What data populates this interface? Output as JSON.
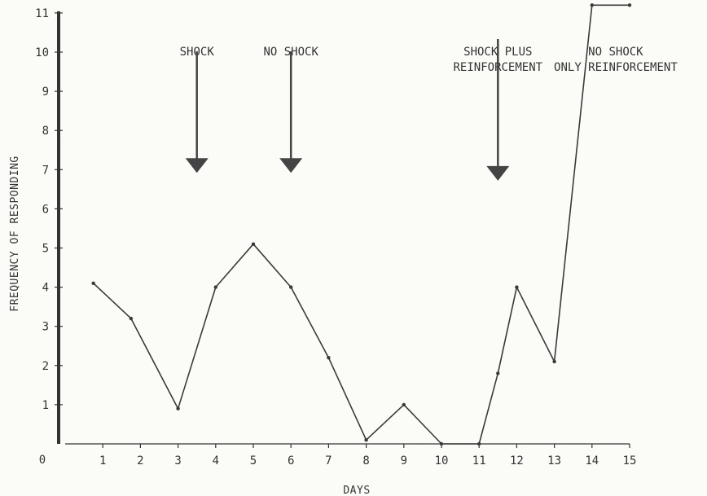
{
  "chart_data": {
    "type": "line",
    "title": "",
    "xlabel": "DAYS",
    "ylabel": "FREQUENCY OF RESPONDING",
    "xlim": [
      0,
      15
    ],
    "ylim": [
      0,
      11
    ],
    "origin_label": "0",
    "x_ticks": [
      "1",
      "2",
      "3",
      "4",
      "5",
      "6",
      "7",
      "8",
      "9",
      "10",
      "11",
      "12",
      "13",
      "14",
      "15"
    ],
    "y_ticks": [
      "1",
      "2",
      "3",
      "4",
      "5",
      "6",
      "7",
      "8",
      "9",
      "10",
      "11"
    ],
    "grid": false,
    "series": [
      {
        "color": "#3a3a3a",
        "points": [
          {
            "x": 0.75,
            "y": 4.1
          },
          {
            "x": 1.75,
            "y": 3.2
          },
          {
            "x": 3.0,
            "y": 0.9
          },
          {
            "x": 4.0,
            "y": 4.0
          },
          {
            "x": 5.0,
            "y": 5.1
          },
          {
            "x": 6.0,
            "y": 4.0
          },
          {
            "x": 7.0,
            "y": 2.2
          },
          {
            "x": 8.0,
            "y": 0.1
          },
          {
            "x": 9.0,
            "y": 1.0
          },
          {
            "x": 10.0,
            "y": 0.0
          },
          {
            "x": 11.0,
            "y": 0.0
          },
          {
            "x": 11.5,
            "y": 1.8
          },
          {
            "x": 12.0,
            "y": 4.0
          },
          {
            "x": 13.0,
            "y": 2.1
          },
          {
            "x": 14.0,
            "y": 11.2
          },
          {
            "x": 15.0,
            "y": 11.2
          }
        ]
      }
    ],
    "annotations": [
      {
        "lines": [
          "SHOCK"
        ],
        "x": 3.5
      },
      {
        "lines": [
          "NO SHOCK"
        ],
        "x": 6.0
      },
      {
        "lines": [
          "SHOCK PLUS",
          "REINFORCEMENT"
        ],
        "x": 11.5
      },
      {
        "lines": [
          "NO  SHOCK",
          "ONLY REINFORCEMENT"
        ],
        "x": 14.5
      }
    ],
    "arrows": [
      {
        "x": 3.5,
        "y_top": 10.2,
        "y_tip": 7.0
      },
      {
        "x": 6.0,
        "y_top": 10.2,
        "y_tip": 7.0
      },
      {
        "x": 11.5,
        "y_top": 10.2,
        "y_tip": 6.8
      }
    ]
  }
}
